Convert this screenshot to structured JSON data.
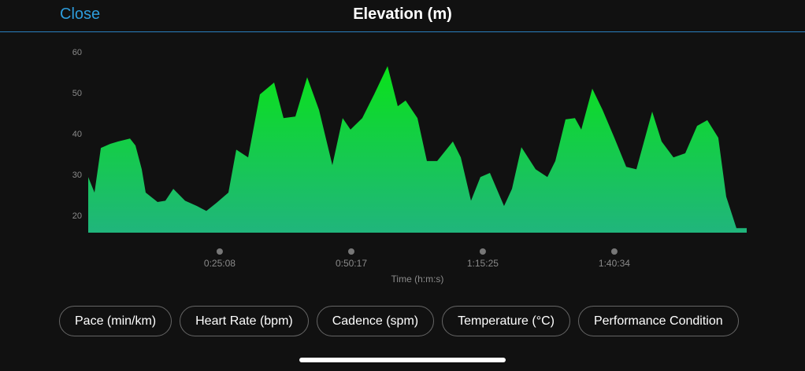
{
  "header": {
    "close": "Close",
    "title": "Elevation (m)"
  },
  "chart_data": {
    "type": "area",
    "xlabel": "Time (h:m:s)",
    "x": [
      0,
      72,
      145,
      253,
      343,
      479,
      542,
      614,
      659,
      795,
      885,
      976,
      1111,
      1247,
      1355,
      1472,
      1608,
      1698,
      1834,
      1969,
      2132,
      2240,
      2376,
      2511,
      2647,
      2800,
      2918,
      3008,
      3143,
      3279,
      3433,
      3550,
      3640,
      3776,
      3884,
      4002,
      4182,
      4273,
      4390,
      4498,
      4607,
      4769,
      4860,
      4968,
      5131,
      5266,
      5357,
      5474,
      5582,
      5655,
      5781,
      5899,
      6034,
      6170,
      6287,
      6468,
      6576,
      6712,
      6847,
      6983,
      7100,
      7226,
      7317,
      7434,
      7552
    ],
    "values": [
      29.6,
      25.8,
      36.7,
      37.7,
      38.3,
      39.0,
      37.3,
      31.5,
      25.8,
      23.5,
      23.8,
      26.7,
      23.8,
      22.5,
      21.3,
      23.3,
      25.8,
      36.3,
      34.4,
      49.8,
      52.7,
      44.0,
      44.4,
      54.0,
      46.0,
      32.5,
      44.0,
      41.2,
      44.0,
      49.8,
      56.7,
      46.9,
      48.3,
      44.0,
      33.5,
      33.5,
      38.3,
      34.4,
      23.8,
      29.6,
      30.6,
      22.5,
      26.7,
      36.9,
      31.5,
      29.6,
      33.5,
      43.7,
      44.0,
      41.2,
      51.2,
      46.0,
      39.2,
      32.1,
      31.5,
      45.6,
      38.3,
      34.4,
      35.4,
      42.1,
      43.5,
      39.2,
      24.8,
      17.1,
      17.1
    ],
    "xlim": [
      0,
      7552
    ],
    "ylim": [
      16,
      60
    ],
    "xticks": [
      {
        "value": 1508,
        "label": "0:25:08"
      },
      {
        "value": 3017,
        "label": "0:50:17"
      },
      {
        "value": 4525,
        "label": "1:15:25"
      },
      {
        "value": 6034,
        "label": "1:40:34"
      }
    ],
    "yticks": [
      20,
      30,
      40,
      50,
      60
    ],
    "colors": [
      "#0ae21a",
      "#20b57c"
    ]
  },
  "buttons": [
    "Pace (min/km)",
    "Heart Rate (bpm)",
    "Cadence (spm)",
    "Temperature (°C)",
    "Performance Condition"
  ]
}
